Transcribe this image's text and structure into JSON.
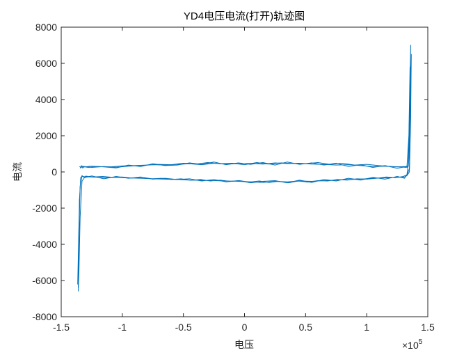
{
  "chart_data": {
    "type": "line",
    "title": "YD4电压电流(打开)轨迹图",
    "xlabel": "电压",
    "ylabel": "电流",
    "x_exponent_label": "×10",
    "x_exponent_power": "5",
    "xlim": [
      -150000,
      150000
    ],
    "ylim": [
      -8000,
      8000
    ],
    "x_ticks": [
      -150000,
      -100000,
      -50000,
      0,
      50000,
      100000,
      150000
    ],
    "x_tick_labels": [
      "-1.5",
      "-1",
      "-0.5",
      "0",
      "0.5",
      "1",
      "1.5"
    ],
    "y_ticks": [
      -8000,
      -6000,
      -4000,
      -2000,
      0,
      2000,
      4000,
      6000,
      8000
    ],
    "y_tick_labels": [
      "-8000",
      "-6000",
      "-4000",
      "-2000",
      "0",
      "2000",
      "4000",
      "6000",
      "8000"
    ],
    "grid": false,
    "line_color": "#0072BD",
    "series": [
      {
        "x": [
          -135000,
          -134000,
          -133000,
          -132500,
          -131000,
          -125000,
          -115000,
          -105000,
          -95000,
          -85000,
          -75000,
          -65000,
          -55000,
          -45000,
          -35000,
          -25000,
          -15000,
          -5000,
          5000,
          15000,
          25000,
          35000,
          45000,
          55000,
          65000,
          75000,
          85000,
          95000,
          105000,
          115000,
          125000,
          131000,
          133000,
          134000,
          135000,
          136000,
          136500,
          136000,
          135000,
          133000,
          131000,
          125000,
          115000,
          105000,
          95000,
          85000,
          75000,
          65000,
          55000,
          45000,
          35000,
          25000,
          15000,
          5000,
          -5000,
          -15000,
          -25000,
          -35000,
          -45000,
          -55000,
          -65000,
          -75000,
          -85000,
          -95000,
          -105000,
          -115000,
          -125000,
          -131000,
          -133000,
          -134000,
          -135000,
          -135500,
          -136000,
          -135500
        ],
        "y": [
          300,
          250,
          280,
          320,
          300,
          250,
          300,
          260,
          320,
          350,
          400,
          380,
          420,
          450,
          400,
          480,
          430,
          450,
          470,
          430,
          500,
          460,
          480,
          430,
          420,
          380,
          400,
          350,
          300,
          320,
          280,
          300,
          250,
          300,
          1000,
          4500,
          6500,
          3000,
          0,
          -200,
          -280,
          -300,
          -330,
          -350,
          -400,
          -420,
          -450,
          -480,
          -520,
          -500,
          -550,
          -520,
          -580,
          -550,
          -520,
          -500,
          -480,
          -460,
          -450,
          -420,
          -400,
          -380,
          -350,
          -330,
          -300,
          -320,
          -280,
          -260,
          -250,
          -300,
          -1500,
          -4500,
          -6400,
          -3000
        ]
      },
      {
        "x": [
          -134500,
          -133500,
          -132500,
          -131000,
          -125000,
          -115000,
          -105000,
          -95000,
          -85000,
          -75000,
          -65000,
          -55000,
          -45000,
          -35000,
          -25000,
          -15000,
          -5000,
          5000,
          15000,
          25000,
          35000,
          45000,
          55000,
          65000,
          75000,
          85000,
          95000,
          105000,
          115000,
          125000,
          131000,
          133000,
          134500,
          135500,
          136000,
          135000,
          133500,
          131000,
          125000,
          115000,
          105000,
          95000,
          85000,
          75000,
          65000,
          55000,
          45000,
          35000,
          25000,
          15000,
          5000,
          -5000,
          -15000,
          -25000,
          -35000,
          -45000,
          -55000,
          -65000,
          -75000,
          -85000,
          -95000,
          -105000,
          -115000,
          -125000,
          -131000,
          -133000,
          -134500,
          -135500,
          -136500,
          -135000
        ],
        "y": [
          200,
          350,
          220,
          280,
          320,
          280,
          220,
          380,
          300,
          450,
          350,
          380,
          500,
          420,
          550,
          400,
          500,
          420,
          520,
          380,
          550,
          420,
          500,
          380,
          480,
          300,
          400,
          250,
          350,
          200,
          280,
          320,
          2000,
          5800,
          3500,
          200,
          -100,
          -350,
          -250,
          -400,
          -300,
          -450,
          -350,
          -500,
          -420,
          -580,
          -450,
          -600,
          -480,
          -520,
          -600,
          -480,
          -550,
          -420,
          -500,
          -380,
          -420,
          -350,
          -400,
          -280,
          -350,
          -250,
          -380,
          -220,
          -320,
          -200,
          -800,
          -3500,
          -6200,
          -1500
        ]
      },
      {
        "x": [
          -134000,
          -132000,
          -128000,
          -120000,
          -110000,
          -100000,
          -90000,
          -80000,
          -70000,
          -60000,
          -50000,
          -40000,
          -30000,
          -20000,
          -10000,
          0,
          10000,
          20000,
          30000,
          40000,
          50000,
          60000,
          70000,
          80000,
          90000,
          100000,
          110000,
          120000,
          128000,
          132000,
          134000,
          135000,
          136000,
          135500,
          134500,
          133000,
          130000,
          124000,
          116000,
          108000,
          100000,
          92000,
          84000,
          76000,
          68000,
          60000,
          52000,
          44000,
          36000,
          28000,
          20000,
          12000,
          4000,
          -4000,
          -12000,
          -20000,
          -28000,
          -36000,
          -44000,
          -52000,
          -60000,
          -68000,
          -76000,
          -84000,
          -92000,
          -100000,
          -108000,
          -116000,
          -124000,
          -130000,
          -133000,
          -134500,
          -135500,
          -136000
        ],
        "y": [
          250,
          300,
          250,
          300,
          280,
          330,
          350,
          380,
          420,
          400,
          480,
          430,
          520,
          450,
          480,
          400,
          520,
          430,
          500,
          470,
          450,
          520,
          420,
          480,
          380,
          420,
          350,
          300,
          280,
          250,
          350,
          3000,
          7000,
          4000,
          800,
          -150,
          -250,
          -320,
          -280,
          -350,
          -400,
          -380,
          -450,
          -420,
          -500,
          -480,
          -560,
          -500,
          -600,
          -520,
          -580,
          -500,
          -560,
          -480,
          -520,
          -450,
          -500,
          -420,
          -460,
          -380,
          -420,
          -350,
          -380,
          -300,
          -340,
          -280,
          -300,
          -250,
          -280,
          -230,
          -500,
          -2500,
          -5500,
          -6600
        ]
      }
    ]
  }
}
